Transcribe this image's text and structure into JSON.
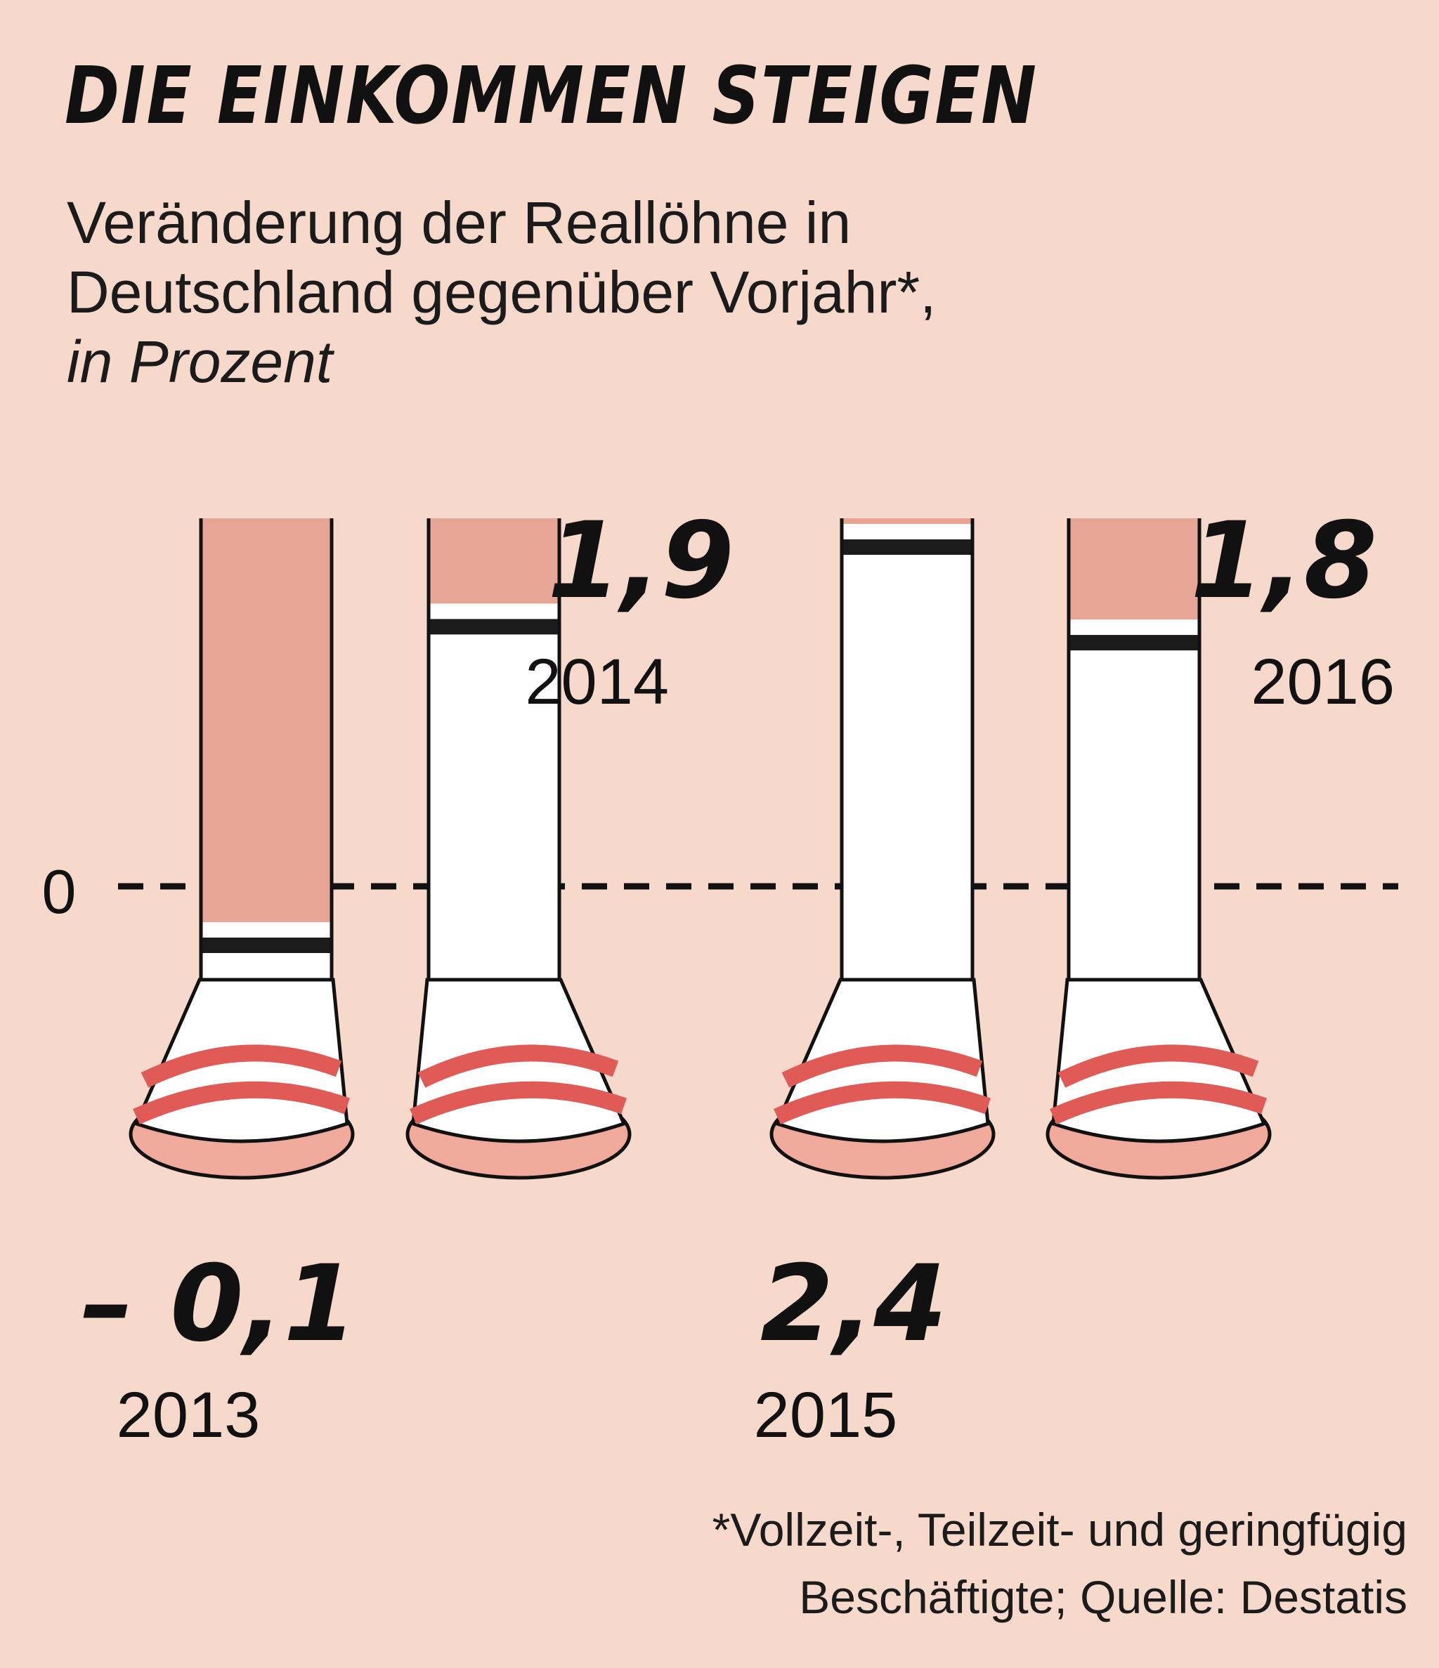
{
  "title": "DIE EINKOMMEN STEIGEN",
  "subtitle_line1": "Veränderung der Reallöhne in",
  "subtitle_line2": "Deutschland gegenüber Vorjahr*,",
  "subtitle_unit": "in Prozent",
  "footnote_line1": "*Vollzeit-, Teilzeit- und geringfügig",
  "footnote_line2": "Beschäftigte; Quelle: Destatis",
  "colors": {
    "background": "#f6d9cb",
    "skin": "#e7a595",
    "sock": "#ffffff",
    "stripe": "#1b1b1b",
    "strap": "#e05a56",
    "sole": "#f0aa9c"
  },
  "chart_data": {
    "type": "bar",
    "categories": [
      "2013",
      "2014",
      "2015",
      "2016"
    ],
    "values": [
      -0.1,
      1.9,
      2.4,
      1.8
    ],
    "value_labels": [
      "– 0,1",
      "1,9",
      "2,4",
      "1,8"
    ],
    "zero_label": "0",
    "ylim": [
      -0.1,
      2.4
    ]
  }
}
